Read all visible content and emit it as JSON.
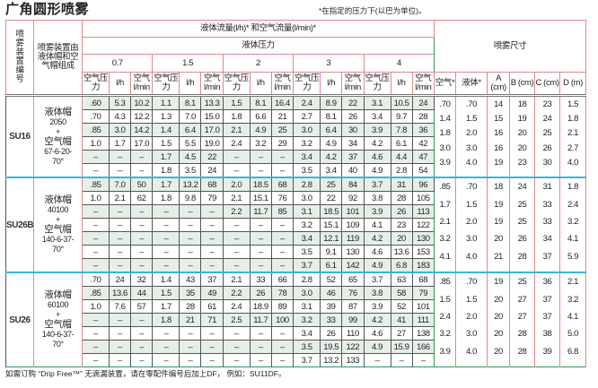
{
  "title": "广角圆形喷雾",
  "note": "*在指定的压力下(以巴为单位)。",
  "header": {
    "nozzle_id": "喷雾装置编号",
    "setup": "喷雾装置由液体帽和空气帽组成",
    "flow": "液体流量(l/h)* 和空气流量(l/min)*",
    "liquid_pressure": "液体压力",
    "spray_dim": "喷雾尺寸",
    "pressures": [
      "0.7",
      "1.5",
      "2",
      "3",
      "4"
    ],
    "sub": [
      "空气压力",
      "l/h",
      "空气l/min"
    ],
    "spray_cols": [
      "空气*",
      "液体*",
      "A (cm)",
      "B (cm)",
      "C (cm)",
      "D (m)"
    ]
  },
  "colors": {
    "border_green": "#2c9a5a",
    "border_red": "#e0888c",
    "group_sep_blue": "#3bb3e0",
    "shade": "#e5efe7"
  },
  "groups": [
    {
      "id": "SU16",
      "setup": [
        "液体帽",
        "2050",
        "+",
        "空气帽",
        "67-6-20-",
        "70°"
      ],
      "shaded_rows": [
        0,
        2,
        4
      ],
      "rows": [
        [
          ".60",
          "5.3",
          "10.2",
          "1.1",
          "8.1",
          "13.3",
          "1.5",
          "8.1",
          "16.4",
          "2.4",
          "8.9",
          "22",
          "3.1",
          "10.5",
          "24"
        ],
        [
          ".70",
          "4.3",
          "12.2",
          "1.3",
          "7.0",
          "15.0",
          "1.8",
          "6.6",
          "21",
          "2.7",
          "8.1",
          "26",
          "3.4",
          "9.7",
          "28"
        ],
        [
          ".85",
          "3.0",
          "14.2",
          "1.4",
          "6.4",
          "17.0",
          "2.1",
          "4.9",
          "25",
          "3.0",
          "6.4",
          "30",
          "3.9",
          "7.8",
          "36"
        ],
        [
          "1.0",
          "1.7",
          "17.0",
          "1.5",
          "5.5",
          "19.0",
          "2.4",
          "3.2",
          "29",
          "3.2",
          "4.9",
          "34",
          "4.2",
          "6.1",
          "42"
        ],
        [
          "–",
          "–",
          "–",
          "1.7",
          "4.5",
          "22",
          "–",
          "–",
          "–",
          "3.4",
          "4.2",
          "37",
          "4.6",
          "4.4",
          "47"
        ],
        [
          "–",
          "–",
          "–",
          "1.8",
          "3.5",
          "24",
          "–",
          "–",
          "–",
          "3.5",
          "3.4",
          "40",
          "4.9",
          "2.8",
          "54"
        ]
      ],
      "spray": [
        [
          ".70",
          "1.4",
          "1.8",
          "3.0",
          "3.9"
        ],
        [
          ".70",
          "1.5",
          "2.0",
          "3.0",
          "4.0"
        ],
        [
          "14",
          "15",
          "16",
          "16",
          "19"
        ],
        [
          "18",
          "19",
          "20",
          "20",
          "23"
        ],
        [
          "23",
          "24",
          "25",
          "26",
          "30"
        ],
        [
          "1.5",
          "1.8",
          "2.1",
          "2.7",
          "4.0"
        ]
      ]
    },
    {
      "id": "SU26B",
      "setup": [
        "液体帽",
        "40100",
        "+",
        "空气帽",
        "140-6-37-",
        "70°"
      ],
      "shaded_rows": [
        0,
        2,
        4,
        6
      ],
      "rows": [
        [
          ".85",
          "7.0",
          "50",
          "1.7",
          "13.2",
          "68",
          "2.0",
          "18.5",
          "68",
          "2.8",
          "25",
          "84",
          "3.7",
          "31",
          "96"
        ],
        [
          "1.0",
          "2.1",
          "62",
          "1.8",
          "9.8",
          "79",
          "2.1",
          "15.1",
          "76",
          "3.0",
          "22",
          "92",
          "3.8",
          "28",
          "105"
        ],
        [
          "–",
          "–",
          "–",
          "–",
          "–",
          "–",
          "2.2",
          "11.7",
          "85",
          "3.1",
          "18.5",
          "101",
          "3.9",
          "26",
          "113"
        ],
        [
          "–",
          "–",
          "–",
          "–",
          "–",
          "–",
          "–",
          "–",
          "–",
          "3.2",
          "15.1",
          "109",
          "4.1",
          "23",
          "122"
        ],
        [
          "–",
          "–",
          "–",
          "–",
          "–",
          "–",
          "–",
          "–",
          "–",
          "3.4",
          "12.1",
          "119",
          "4.2",
          "20",
          "130"
        ],
        [
          "–",
          "–",
          "–",
          "–",
          "–",
          "–",
          "–",
          "–",
          "–",
          "3.5",
          "9.1",
          "130",
          "4.6",
          "13.6",
          "153"
        ],
        [
          "–",
          "–",
          "–",
          "–",
          "–",
          "–",
          "–",
          "–",
          "–",
          "3.7",
          "6.1",
          "142",
          "4.9",
          "6.8",
          "183"
        ]
      ],
      "spray": [
        [
          ".85",
          "1.7",
          "2.1",
          "3.2",
          "4.1"
        ],
        [
          ".70",
          "1.5",
          "2.0",
          "3.0",
          "4.0"
        ],
        [
          "18",
          "19",
          "19",
          "20",
          "21"
        ],
        [
          "24",
          "25",
          "25",
          "26",
          "28"
        ],
        [
          "31",
          "33",
          "33",
          "34",
          "37"
        ],
        [
          "1.8",
          "2.4",
          "3.2",
          "4.1",
          "5.9"
        ]
      ]
    },
    {
      "id": "SU26",
      "setup": [
        "液体帽",
        "60100",
        "+",
        "空气帽",
        "140-6-37-",
        "70°"
      ],
      "shaded_rows": [
        1,
        3,
        5
      ],
      "rows": [
        [
          ".70",
          "24",
          "32",
          "1.4",
          "43",
          "37",
          "2.1",
          "33",
          "66",
          "2.8",
          "52",
          "65",
          "3.7",
          "63",
          "68"
        ],
        [
          ".85",
          "13.6",
          "44",
          "1.5",
          "35",
          "49",
          "2.2",
          "26",
          "78",
          "3.0",
          "46",
          "76",
          "3.8",
          "58",
          "79"
        ],
        [
          "1.0",
          "7.6",
          "57",
          "1.7",
          "28",
          "61",
          "2.4",
          "18.9",
          "89",
          "3.1",
          "39",
          "87",
          "3.9",
          "52",
          "101"
        ],
        [
          "–",
          "–",
          "–",
          "1.8",
          "21",
          "71",
          "2.5",
          "11.7",
          "100",
          "3.2",
          "33",
          "99",
          "4.2",
          "41",
          "111"
        ],
        [
          "–",
          "–",
          "–",
          "–",
          "–",
          "–",
          "–",
          "–",
          "–",
          "3.4",
          "26",
          "110",
          "4.6",
          "27",
          "138"
        ],
        [
          "–",
          "–",
          "–",
          "–",
          "–",
          "–",
          "–",
          "–",
          "–",
          "3.5",
          "19.5",
          "122",
          "4.9",
          "15.9",
          "166"
        ],
        [
          "–",
          "–",
          "–",
          "–",
          "–",
          "–",
          "–",
          "–",
          "–",
          "3.7",
          "13.2",
          "133",
          "–",
          "–",
          "–"
        ]
      ],
      "spray": [
        [
          ".85",
          "1.5",
          "2.4",
          "3.2",
          "3.9"
        ],
        [
          ".70",
          "1.5",
          "2.0",
          "3.0",
          "4.0"
        ],
        [
          "19",
          "20",
          "20",
          "20",
          "20"
        ],
        [
          "25",
          "27",
          "27",
          "28",
          "28"
        ],
        [
          "36",
          "37",
          "37",
          "38",
          "39"
        ],
        [
          "2.1",
          "3.2",
          "4.1",
          "5.0",
          "6.8"
        ]
      ]
    }
  ],
  "footer": "如需订购 “Drip Free™” 无滴漏装置，请在零配件编号后加上DF， 例如：SU11DF。"
}
